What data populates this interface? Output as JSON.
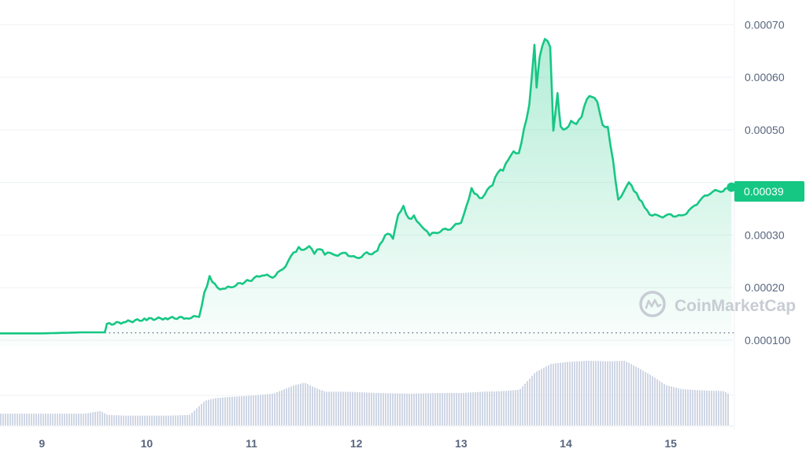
{
  "chart_data": {
    "type": "area",
    "title": "",
    "xlabel": "",
    "ylabel": "",
    "x_ticks": [
      "9",
      "10",
      "11",
      "12",
      "13",
      "14",
      "15"
    ],
    "y_ticks": [
      "0.00070",
      "0.00060",
      "0.00050",
      "0.00030",
      "0.00020",
      "0.000100"
    ],
    "ylim": [
      8.8e-05,
      0.000747
    ],
    "xlim": [
      8.6,
      15.6
    ],
    "grid": true,
    "current_price_label": "0.00039",
    "baseline_value": 0.000114,
    "series": [
      {
        "type": "line-area",
        "color": "#16c784",
        "x": [
          8.6,
          9.0,
          9.4,
          9.6,
          9.62,
          9.8,
          10.0,
          10.2,
          10.4,
          10.5,
          10.55,
          10.6,
          10.65,
          10.7,
          10.75,
          10.85,
          11.0,
          11.1,
          11.2,
          11.3,
          11.4,
          11.45,
          11.5,
          11.55,
          11.6,
          11.65,
          11.7,
          11.75,
          11.8,
          11.9,
          12.0,
          12.1,
          12.15,
          12.2,
          12.25,
          12.3,
          12.35,
          12.4,
          12.45,
          12.5,
          12.55,
          12.6,
          12.65,
          12.7,
          12.8,
          12.9,
          13.0,
          13.05,
          13.1,
          13.15,
          13.2,
          13.25,
          13.3,
          13.35,
          13.4,
          13.45,
          13.5,
          13.55,
          13.6,
          13.65,
          13.7,
          13.72,
          13.75,
          13.8,
          13.85,
          13.88,
          13.92,
          13.95,
          14.0,
          14.05,
          14.1,
          14.15,
          14.2,
          14.25,
          14.3,
          14.35,
          14.4,
          14.45,
          14.5,
          14.55,
          14.6,
          14.65,
          14.7,
          14.75,
          14.8,
          14.9,
          15.0,
          15.1,
          15.2,
          15.3,
          15.4,
          15.5,
          15.58
        ],
        "values": [
          0.000113,
          0.000113,
          0.000115,
          0.000115,
          0.00013,
          0.000135,
          0.00014,
          0.000142,
          0.000143,
          0.000145,
          0.00019,
          0.00022,
          0.000205,
          0.000195,
          0.000198,
          0.000205,
          0.000215,
          0.000225,
          0.00022,
          0.000235,
          0.000265,
          0.000275,
          0.00027,
          0.000278,
          0.000265,
          0.000275,
          0.000265,
          0.000268,
          0.000262,
          0.000265,
          0.000255,
          0.000265,
          0.000262,
          0.00027,
          0.00029,
          0.000305,
          0.000295,
          0.00034,
          0.000355,
          0.00033,
          0.000335,
          0.00032,
          0.00031,
          0.0003,
          0.000308,
          0.000313,
          0.000325,
          0.000355,
          0.000388,
          0.000375,
          0.000368,
          0.000385,
          0.000395,
          0.00042,
          0.000425,
          0.000445,
          0.00046,
          0.000455,
          0.0005,
          0.000545,
          0.00066,
          0.00058,
          0.00064,
          0.000675,
          0.00066,
          0.0005,
          0.00057,
          0.000505,
          0.0005,
          0.000515,
          0.00051,
          0.000525,
          0.00056,
          0.000565,
          0.000555,
          0.00051,
          0.000505,
          0.00044,
          0.000365,
          0.00038,
          0.0004,
          0.000385,
          0.00037,
          0.000355,
          0.00034,
          0.000335,
          0.000338,
          0.000335,
          0.00035,
          0.00037,
          0.000383,
          0.000385,
          0.000391
        ]
      }
    ],
    "volume": {
      "x": [
        8.6,
        9.0,
        9.4,
        9.55,
        9.62,
        9.8,
        10.0,
        10.2,
        10.4,
        10.55,
        10.65,
        10.8,
        11.0,
        11.2,
        11.4,
        11.5,
        11.6,
        11.7,
        11.9,
        12.2,
        12.5,
        12.8,
        13.0,
        13.2,
        13.4,
        13.55,
        13.7,
        13.85,
        14.0,
        14.2,
        14.4,
        14.55,
        14.65,
        14.8,
        14.95,
        15.1,
        15.3,
        15.5,
        15.58
      ],
      "values": [
        0.18,
        0.18,
        0.18,
        0.22,
        0.16,
        0.15,
        0.15,
        0.15,
        0.16,
        0.38,
        0.42,
        0.44,
        0.46,
        0.49,
        0.62,
        0.66,
        0.58,
        0.52,
        0.52,
        0.5,
        0.49,
        0.5,
        0.5,
        0.52,
        0.53,
        0.55,
        0.82,
        0.95,
        0.98,
        1.0,
        0.99,
        1.0,
        0.92,
        0.78,
        0.62,
        0.56,
        0.54,
        0.53,
        0.45
      ]
    },
    "colors": {
      "line": "#16c784",
      "area_top": "#16c784",
      "grid": "#eff2f5",
      "volume": "#cfd6e4",
      "baseline_dots": "#58667e",
      "badge": "#16c784"
    }
  },
  "watermark": {
    "text": "CoinMarketCap",
    "icon": "coinmarketcap-logo-icon"
  }
}
